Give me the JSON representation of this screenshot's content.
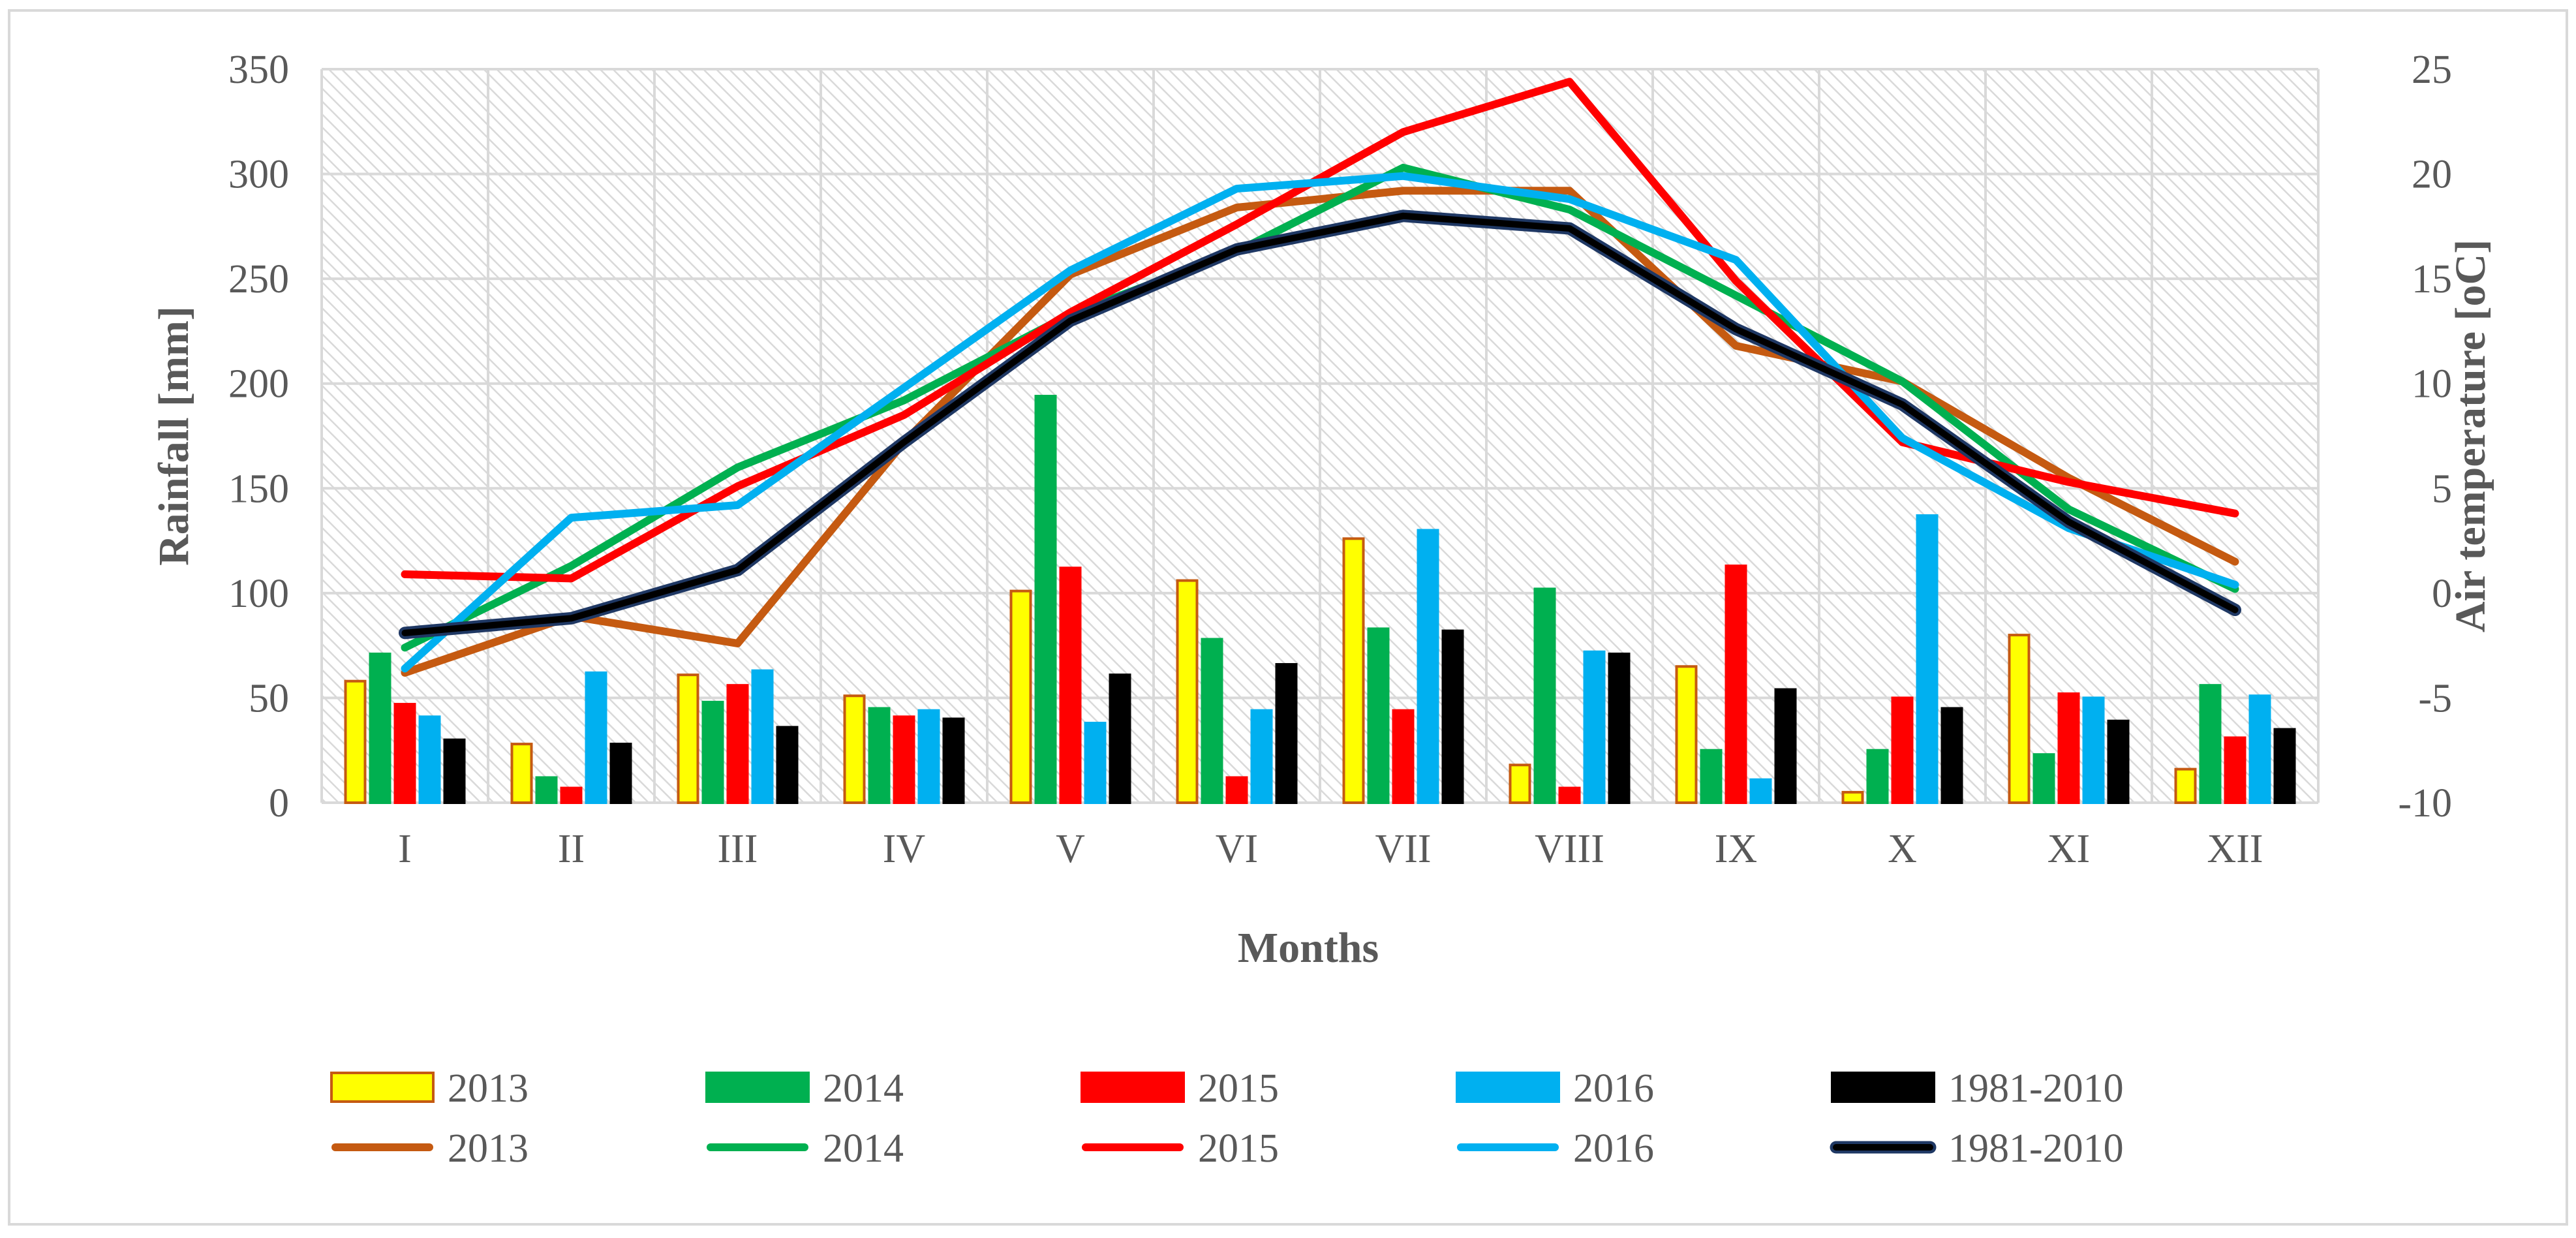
{
  "chart_data": {
    "type": "bar",
    "title": "",
    "xlabel": "Months",
    "ylabel": "Rainfall [mm]",
    "y2label": "Air temperature [oC]",
    "categories": [
      "I",
      "II",
      "III",
      "IV",
      "V",
      "VI",
      "VII",
      "VIII",
      "IX",
      "X",
      "XI",
      "XII"
    ],
    "ylim": [
      0,
      350
    ],
    "yticks": [
      "0",
      "50",
      "100",
      "150",
      "200",
      "250",
      "300",
      "350"
    ],
    "y2lim": [
      -10,
      25
    ],
    "y2ticks": [
      "-10",
      "-5",
      "0",
      "5",
      "10",
      "15",
      "20",
      "25"
    ],
    "bar_series": [
      {
        "name": "2013",
        "color": "#ffff00",
        "stroke": "#c55a11",
        "values": [
          58,
          28,
          61,
          51,
          101,
          106,
          126,
          18,
          65,
          5,
          80,
          16
        ]
      },
      {
        "name": "2014",
        "color": "#00b050",
        "stroke": "#00b050",
        "values": [
          71,
          12,
          48,
          45,
          194,
          78,
          83,
          102,
          25,
          25,
          23,
          56
        ]
      },
      {
        "name": "2015",
        "color": "#ff0000",
        "stroke": "#ff0000",
        "values": [
          47,
          7,
          56,
          41,
          112,
          12,
          44,
          7,
          113,
          50,
          52,
          31
        ]
      },
      {
        "name": "2016",
        "color": "#00b0f0",
        "stroke": "#00b0f0",
        "values": [
          41,
          62,
          63,
          44,
          38,
          44,
          130,
          72,
          11,
          137,
          50,
          51
        ]
      },
      {
        "name": "1981-2010",
        "color": "#000000",
        "stroke": "#000000",
        "values": [
          30,
          28,
          36,
          40,
          61,
          66,
          82,
          71,
          54,
          45,
          39,
          35
        ]
      }
    ],
    "line_series": [
      {
        "name": "2013",
        "color": "#c55a11",
        "values": [
          -3.8,
          -1.1,
          -2.4,
          7.2,
          15.2,
          18.4,
          19.2,
          19.2,
          11.8,
          10.1,
          5.5,
          1.5
        ]
      },
      {
        "name": "2014",
        "color": "#00b050",
        "values": [
          -2.6,
          1.3,
          6.0,
          9.2,
          13.3,
          16.3,
          20.3,
          18.3,
          14.2,
          10.1,
          4.0,
          0.2
        ]
      },
      {
        "name": "2015",
        "color": "#ff0000",
        "values": [
          0.9,
          0.7,
          5.1,
          8.5,
          13.4,
          17.6,
          22.0,
          24.4,
          14.9,
          7.2,
          5.3,
          3.8
        ]
      },
      {
        "name": "2016",
        "color": "#00b0f0",
        "values": [
          -3.6,
          3.6,
          4.2,
          9.8,
          15.4,
          19.3,
          19.9,
          18.8,
          15.9,
          7.4,
          3.1,
          0.4
        ]
      },
      {
        "name": "1981-2010",
        "color": "#000000",
        "outline": "#1f3864",
        "values": [
          -1.9,
          -1.2,
          1.1,
          7.2,
          13.0,
          16.4,
          18.0,
          17.4,
          12.6,
          9.0,
          3.4,
          -0.8
        ]
      }
    ],
    "legend_position": "bottom"
  }
}
